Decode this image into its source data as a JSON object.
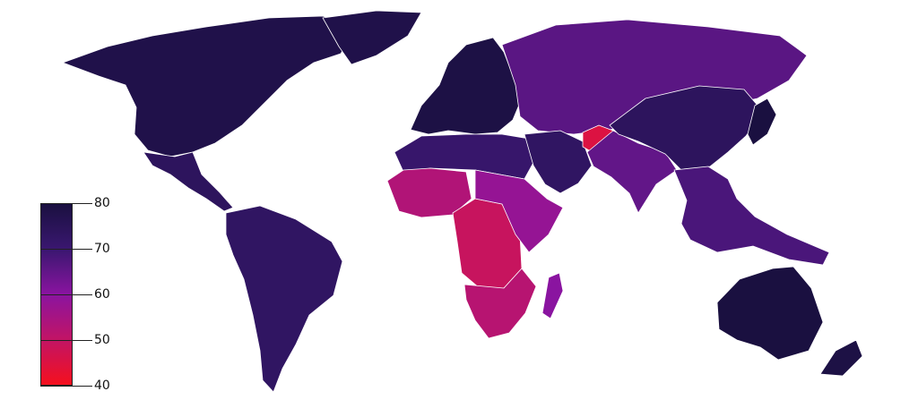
{
  "legend": {
    "ticks": [
      "80",
      "70",
      "60",
      "50",
      "40"
    ],
    "colors": {
      "c80": "#1a1040",
      "c70": "#3a1770",
      "c60": "#8a14a0",
      "c50": "#c21465",
      "c40": "#f5101e"
    }
  },
  "regions": [
    {
      "name": "north-america",
      "value": 78
    },
    {
      "name": "greenland",
      "value": 78
    },
    {
      "name": "mexico-central-america",
      "value": 74
    },
    {
      "name": "south-america",
      "value": 73
    },
    {
      "name": "europe",
      "value": 79
    },
    {
      "name": "russia-central-asia",
      "value": 66
    },
    {
      "name": "north-africa",
      "value": 71
    },
    {
      "name": "middle-east",
      "value": 73
    },
    {
      "name": "afghanistan",
      "value": 45
    },
    {
      "name": "west-africa",
      "value": 53
    },
    {
      "name": "central-africa",
      "value": 49
    },
    {
      "name": "east-africa",
      "value": 58
    },
    {
      "name": "southern-africa",
      "value": 52
    },
    {
      "name": "madagascar",
      "value": 60
    },
    {
      "name": "south-asia",
      "value": 65
    },
    {
      "name": "china",
      "value": 74
    },
    {
      "name": "japan",
      "value": 80
    },
    {
      "name": "southeast-asia",
      "value": 68
    },
    {
      "name": "australia",
      "value": 80
    },
    {
      "name": "new-zealand",
      "value": 79
    }
  ]
}
